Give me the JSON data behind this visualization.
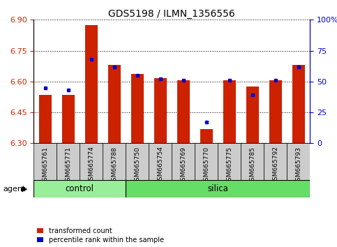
{
  "title": "GDS5198 / ILMN_1356556",
  "samples": [
    "GSM665761",
    "GSM665771",
    "GSM665774",
    "GSM665788",
    "GSM665750",
    "GSM665754",
    "GSM665769",
    "GSM665770",
    "GSM665775",
    "GSM665785",
    "GSM665792",
    "GSM665793"
  ],
  "red_values": [
    6.535,
    6.535,
    6.875,
    6.68,
    6.635,
    6.615,
    6.605,
    6.37,
    6.605,
    6.575,
    6.605,
    6.68
  ],
  "blue_values_pct": [
    45,
    43,
    68,
    62,
    55,
    52,
    51,
    17,
    51,
    39,
    51,
    62
  ],
  "y_min": 6.3,
  "y_max": 6.9,
  "y_ticks": [
    6.3,
    6.45,
    6.6,
    6.75,
    6.9
  ],
  "y_right_ticks": [
    0,
    25,
    50,
    75,
    100
  ],
  "bar_color": "#cc2200",
  "dot_color": "#0000cc",
  "n_control": 4,
  "n_silica": 8,
  "control_color": "#99ee99",
  "silica_color": "#66dd66",
  "xtick_bg_color": "#cccccc",
  "agent_label": "agent",
  "legend_labels": [
    "transformed count",
    "percentile rank within the sample"
  ],
  "left_y_color": "#cc2200",
  "right_y_color": "#0000cc",
  "title_fontsize": 10,
  "bar_width": 0.55
}
